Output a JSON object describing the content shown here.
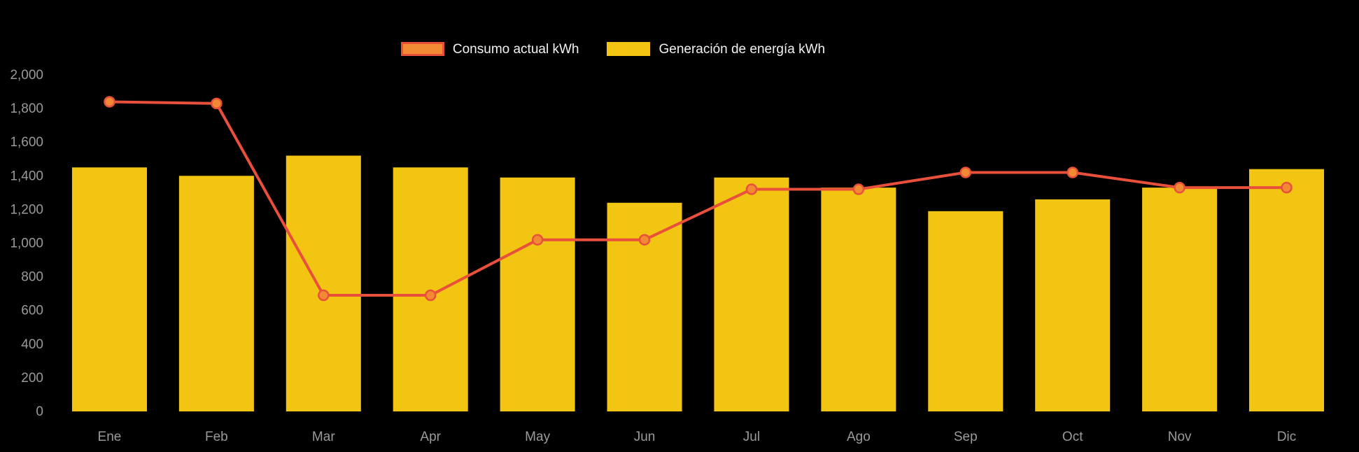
{
  "chart_data": {
    "type": "bar-line-combo",
    "title": "",
    "categories": [
      "Ene",
      "Feb",
      "Mar",
      "Apr",
      "May",
      "Jun",
      "Jul",
      "Ago",
      "Sep",
      "Oct",
      "Nov",
      "Dic"
    ],
    "series": [
      {
        "name": "Consumo actual kWh",
        "type": "line",
        "color": "#E8503B",
        "marker_fill": "#F28A33",
        "values": [
          1840,
          1830,
          690,
          690,
          1020,
          1020,
          1320,
          1320,
          1420,
          1420,
          1330,
          1330
        ]
      },
      {
        "name": "Generación de energía kWh",
        "type": "bar",
        "color": "#F2C513",
        "values": [
          1450,
          1400,
          1520,
          1450,
          1390,
          1240,
          1390,
          1330,
          1190,
          1260,
          1330,
          1440
        ]
      }
    ],
    "xlabel": "",
    "ylabel": "",
    "ylim": [
      0,
      2000
    ],
    "ytick_step": 200,
    "ytick_labels": [
      "0",
      "200",
      "400",
      "600",
      "800",
      "1,000",
      "1,200",
      "1,400",
      "1,600",
      "1,800",
      "2,000"
    ],
    "grid": false,
    "legend_position": "top-center",
    "axis_label_color": "#9A9A9A",
    "legend_text_color": "#F2F2F2",
    "background": "#000000"
  }
}
